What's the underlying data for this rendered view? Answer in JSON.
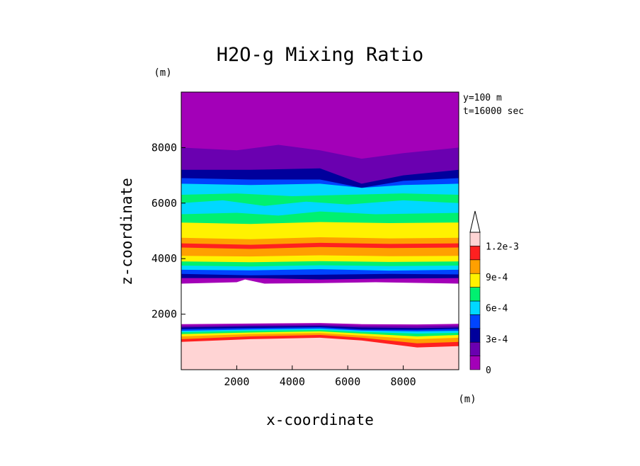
{
  "chart_data": {
    "type": "contour",
    "title": "H2O-g Mixing Ratio",
    "xlabel": "x-coordinate",
    "ylabel": "z-coordinate",
    "x_unit": "(m)",
    "y_unit": "(m)",
    "annotation_lines": [
      "y=100 m",
      "t=16000 sec"
    ],
    "xlim": [
      0,
      10000
    ],
    "ylim": [
      0,
      10000
    ],
    "x_ticks": [
      2000,
      4000,
      6000,
      8000
    ],
    "y_ticks": [
      2000,
      4000,
      6000,
      8000
    ],
    "x_tick_labels": [
      "2000",
      "4000",
      "6000",
      "8000"
    ],
    "y_tick_labels": [
      "2000",
      "4000",
      "6000",
      "8000"
    ],
    "colorbar": {
      "levels": [
        0,
        0.00015,
        0.0003,
        0.00045,
        0.0006,
        0.00075,
        0.0009,
        0.00105,
        0.0012
      ],
      "colors": [
        "#a300b8",
        "#6a00b0",
        "#00009c",
        "#0044ff",
        "#00d8ff",
        "#00f070",
        "#fff200",
        "#ffa000",
        "#ff2020",
        "#ffd4d4"
      ],
      "labels": [
        {
          "value": 0,
          "text": "0"
        },
        {
          "value": 0.0003,
          "text": "3e-4"
        },
        {
          "value": 0.0006,
          "text": "6e-4"
        },
        {
          "value": 0.0009,
          "text": "9e-4"
        },
        {
          "value": 0.0012,
          "text": "1.2e-3"
        }
      ],
      "extend": "max"
    },
    "layers": [
      {
        "name": "layer-pink",
        "color": "#ffd4d4",
        "z": [
          [
            0,
            1000
          ],
          [
            2500,
            1100
          ],
          [
            5000,
            1150
          ],
          [
            6500,
            1050
          ],
          [
            8500,
            800
          ],
          [
            10000,
            850
          ]
        ]
      },
      {
        "name": "layer-red",
        "color": "#ff2020",
        "z": [
          [
            0,
            1100
          ],
          [
            2500,
            1200
          ],
          [
            5000,
            1250
          ],
          [
            6500,
            1150
          ],
          [
            8500,
            950
          ],
          [
            10000,
            1000
          ]
        ]
      },
      {
        "name": "layer-orange",
        "color": "#ffa000",
        "z": [
          [
            0,
            1200
          ],
          [
            2500,
            1280
          ],
          [
            5000,
            1320
          ],
          [
            6500,
            1230
          ],
          [
            8500,
            1100
          ],
          [
            10000,
            1150
          ]
        ]
      },
      {
        "name": "layer-yellow",
        "color": "#fff200",
        "z": [
          [
            0,
            1280
          ],
          [
            2500,
            1340
          ],
          [
            5000,
            1380
          ],
          [
            6500,
            1300
          ],
          [
            8500,
            1200
          ],
          [
            10000,
            1250
          ]
        ]
      },
      {
        "name": "layer-green",
        "color": "#00f070",
        "z": [
          [
            0,
            1350
          ],
          [
            2500,
            1400
          ],
          [
            5000,
            1430
          ],
          [
            6500,
            1360
          ],
          [
            8500,
            1300
          ],
          [
            10000,
            1330
          ]
        ]
      },
      {
        "name": "layer-cyan",
        "color": "#00d8ff",
        "z": [
          [
            0,
            1400
          ],
          [
            2500,
            1450
          ],
          [
            5000,
            1480
          ],
          [
            6500,
            1410
          ],
          [
            8500,
            1380
          ],
          [
            10000,
            1400
          ]
        ]
      },
      {
        "name": "layer-blue",
        "color": "#0044ff",
        "z": [
          [
            0,
            1460
          ],
          [
            2500,
            1500
          ],
          [
            5000,
            1530
          ],
          [
            6500,
            1450
          ],
          [
            8500,
            1440
          ],
          [
            10000,
            1470
          ]
        ]
      },
      {
        "name": "layer-navy",
        "color": "#00009c",
        "z": [
          [
            0,
            1520
          ],
          [
            2500,
            1560
          ],
          [
            5000,
            1580
          ],
          [
            6500,
            1520
          ],
          [
            8500,
            1500
          ],
          [
            10000,
            1520
          ]
        ]
      },
      {
        "name": "layer-violet",
        "color": "#6a00b0",
        "z": [
          [
            0,
            1580
          ],
          [
            2500,
            1610
          ],
          [
            5000,
            1630
          ],
          [
            6500,
            1580
          ],
          [
            8500,
            1570
          ],
          [
            10000,
            1590
          ]
        ]
      },
      {
        "name": "layer-purple",
        "color": "#a300b8",
        "z": [
          [
            0,
            1640
          ],
          [
            2500,
            1660
          ],
          [
            5000,
            1680
          ],
          [
            6500,
            1640
          ],
          [
            8500,
            1630
          ],
          [
            10000,
            1650
          ]
        ]
      },
      {
        "name": "layer-dry-gap",
        "color": "#ffffff",
        "z": [
          [
            0,
            3100
          ],
          [
            2000,
            3150
          ],
          [
            2300,
            3250
          ],
          [
            3000,
            3100
          ],
          [
            5000,
            3120
          ],
          [
            7000,
            3150
          ],
          [
            10000,
            3100
          ]
        ]
      },
      {
        "name": "layer-mid-purple",
        "color": "#a300b8",
        "z": [
          [
            0,
            3300
          ],
          [
            2500,
            3300
          ],
          [
            5000,
            3250
          ],
          [
            7500,
            3280
          ],
          [
            10000,
            3300
          ]
        ]
      },
      {
        "name": "layer-mid-navy",
        "color": "#00009c",
        "z": [
          [
            0,
            3450
          ],
          [
            2500,
            3400
          ],
          [
            5000,
            3420
          ],
          [
            7500,
            3450
          ],
          [
            10000,
            3430
          ]
        ]
      },
      {
        "name": "layer-mid-blue",
        "color": "#0044ff",
        "z": [
          [
            0,
            3600
          ],
          [
            2500,
            3580
          ],
          [
            5000,
            3620
          ],
          [
            7500,
            3570
          ],
          [
            10000,
            3600
          ]
        ]
      },
      {
        "name": "layer-mid-cyan",
        "color": "#00d8ff",
        "z": [
          [
            0,
            3750
          ],
          [
            2500,
            3720
          ],
          [
            5000,
            3760
          ],
          [
            7500,
            3730
          ],
          [
            10000,
            3750
          ]
        ]
      },
      {
        "name": "layer-mid-green",
        "color": "#00f070",
        "z": [
          [
            0,
            3900
          ],
          [
            2500,
            3870
          ],
          [
            5000,
            3910
          ],
          [
            7500,
            3880
          ],
          [
            10000,
            3900
          ]
        ]
      },
      {
        "name": "layer-mid-yellow",
        "color": "#fff200",
        "z": [
          [
            0,
            4100
          ],
          [
            2500,
            4080
          ],
          [
            5000,
            4120
          ],
          [
            7500,
            4090
          ],
          [
            10000,
            4100
          ]
        ]
      },
      {
        "name": "layer-mid-orange",
        "color": "#ffa000",
        "z": [
          [
            0,
            4400
          ],
          [
            2500,
            4350
          ],
          [
            5000,
            4420
          ],
          [
            7500,
            4380
          ],
          [
            10000,
            4400
          ]
        ]
      },
      {
        "name": "layer-mid-red",
        "color": "#ff2020",
        "z": [
          [
            0,
            4550
          ],
          [
            2500,
            4500
          ],
          [
            5000,
            4570
          ],
          [
            7500,
            4530
          ],
          [
            10000,
            4550
          ]
        ]
      },
      {
        "name": "layer-upper-orange",
        "color": "#ffa000",
        "z": [
          [
            0,
            4750
          ],
          [
            2500,
            4700
          ],
          [
            5000,
            4770
          ],
          [
            7500,
            4730
          ],
          [
            10000,
            4750
          ]
        ]
      },
      {
        "name": "layer-upper-yellow",
        "color": "#fff200",
        "z": [
          [
            0,
            5300
          ],
          [
            2500,
            5250
          ],
          [
            5000,
            5320
          ],
          [
            7500,
            5280
          ],
          [
            10000,
            5300
          ]
        ]
      },
      {
        "name": "layer-upper-green",
        "color": "#00f070",
        "z": [
          [
            0,
            5600
          ],
          [
            2000,
            5650
          ],
          [
            3500,
            5550
          ],
          [
            5000,
            5700
          ],
          [
            7000,
            5600
          ],
          [
            10000,
            5650
          ]
        ]
      },
      {
        "name": "layer-upper-cyan",
        "color": "#00d8ff",
        "z": [
          [
            0,
            6000
          ],
          [
            1500,
            6100
          ],
          [
            3000,
            5900
          ],
          [
            4500,
            6050
          ],
          [
            6000,
            5950
          ],
          [
            8000,
            6100
          ],
          [
            10000,
            6000
          ]
        ]
      },
      {
        "name": "layer-upper-green2",
        "color": "#00f070",
        "z": [
          [
            0,
            6300
          ],
          [
            2000,
            6350
          ],
          [
            4000,
            6250
          ],
          [
            6000,
            6300
          ],
          [
            8000,
            6350
          ],
          [
            10000,
            6300
          ]
        ]
      },
      {
        "name": "layer-upper-cyan2",
        "color": "#00d8ff",
        "z": [
          [
            0,
            6700
          ],
          [
            2500,
            6650
          ],
          [
            5000,
            6700
          ],
          [
            6500,
            6550
          ],
          [
            8000,
            6650
          ],
          [
            10000,
            6700
          ]
        ]
      },
      {
        "name": "layer-upper-blue",
        "color": "#0044ff",
        "z": [
          [
            0,
            6900
          ],
          [
            2500,
            6850
          ],
          [
            5000,
            6850
          ],
          [
            6500,
            6550
          ],
          [
            8000,
            6800
          ],
          [
            10000,
            6900
          ]
        ]
      },
      {
        "name": "layer-upper-navy",
        "color": "#00009c",
        "z": [
          [
            0,
            7200
          ],
          [
            2500,
            7200
          ],
          [
            5000,
            7250
          ],
          [
            6500,
            6700
          ],
          [
            8000,
            7000
          ],
          [
            10000,
            7200
          ]
        ]
      },
      {
        "name": "layer-top-violet",
        "color": "#6a00b0",
        "z": [
          [
            0,
            8000
          ],
          [
            2000,
            7900
          ],
          [
            3500,
            8100
          ],
          [
            5000,
            7900
          ],
          [
            6500,
            7600
          ],
          [
            8000,
            7800
          ],
          [
            10000,
            8000
          ]
        ]
      },
      {
        "name": "layer-top-purple",
        "color": "#a300b8",
        "z": [
          [
            0,
            8600
          ],
          [
            2000,
            8500
          ],
          [
            3500,
            8900
          ],
          [
            5000,
            8800
          ],
          [
            6500,
            8300
          ],
          [
            8000,
            8500
          ],
          [
            10000,
            8700
          ]
        ]
      }
    ]
  }
}
